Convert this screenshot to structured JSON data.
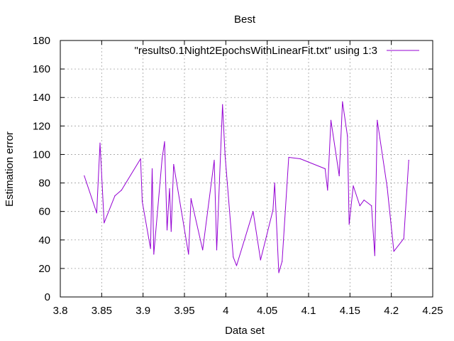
{
  "chart_data": {
    "type": "line",
    "title": "Best",
    "xlabel": "Data set",
    "ylabel": "Estimation error",
    "xlim": [
      3.8,
      4.25
    ],
    "ylim": [
      0,
      180
    ],
    "xticks": [
      "3.8",
      "3.85",
      "3.9",
      "3.95",
      "4",
      "4.05",
      "4.1",
      "4.15",
      "4.2",
      "4.25"
    ],
    "yticks": [
      "0",
      "20",
      "40",
      "60",
      "80",
      "100",
      "120",
      "140",
      "160",
      "180"
    ],
    "grid": true,
    "legend_position": "top-right",
    "series": [
      {
        "name": "\"results0.1Night2EpochsWithLinearFit.txt\"  using 1:3",
        "color": "#9400d3",
        "x": [
          3.829,
          3.844,
          3.848,
          3.853,
          3.866,
          3.874,
          3.897,
          3.899,
          3.909,
          3.911,
          3.913,
          3.923,
          3.926,
          3.929,
          3.932,
          3.934,
          3.937,
          3.955,
          3.958,
          3.972,
          3.986,
          3.989,
          3.996,
          3.999,
          4.009,
          4.013,
          4.033,
          4.042,
          4.057,
          4.059,
          4.064,
          4.068,
          4.076,
          4.09,
          4.12,
          4.123,
          4.127,
          4.137,
          4.141,
          4.147,
          4.149,
          4.154,
          4.162,
          4.167,
          4.176,
          4.18,
          4.183,
          4.195,
          4.203,
          4.215,
          4.221
        ],
        "y": [
          85,
          59,
          108,
          52,
          71,
          75,
          97,
          67,
          34,
          90,
          30,
          97,
          109,
          47,
          76,
          46,
          93,
          30,
          69,
          33,
          96,
          33,
          135,
          100,
          28,
          22,
          60,
          26,
          61,
          80,
          17,
          25,
          98,
          97,
          90,
          75,
          124,
          85,
          137,
          113,
          51,
          78,
          64,
          68,
          64,
          29,
          124,
          77,
          32,
          41,
          96
        ]
      }
    ]
  }
}
